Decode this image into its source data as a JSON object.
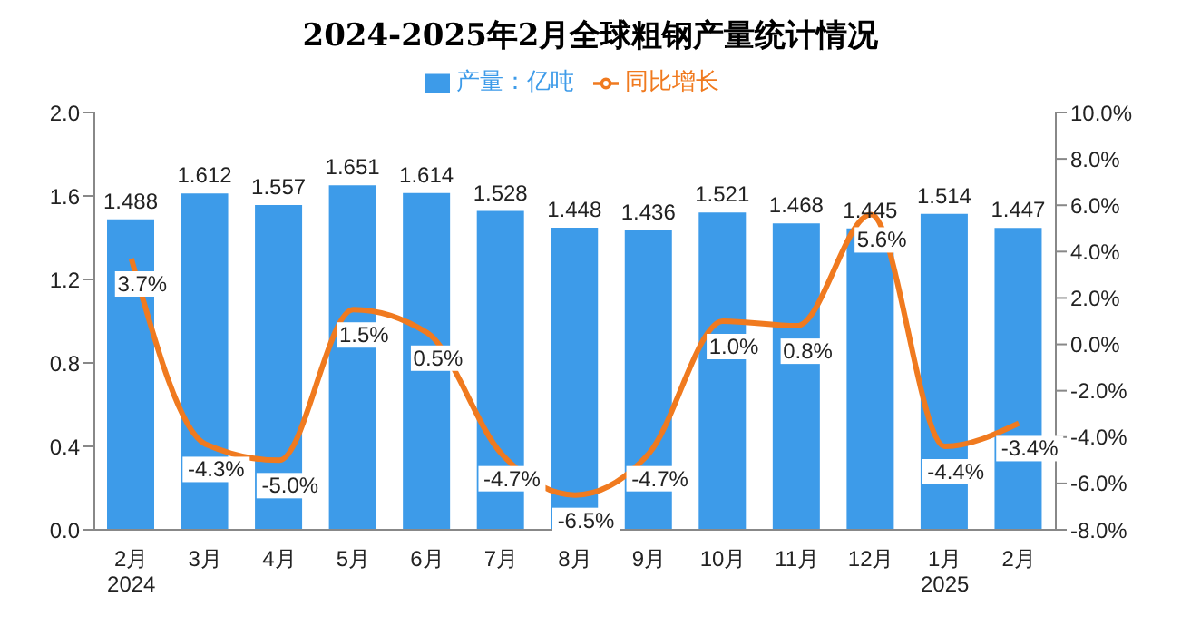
{
  "chart_data": {
    "type": "bar",
    "title": "2024-2025年2月全球粗钢产量统计情况",
    "categories": [
      "2月\n2024",
      "3月",
      "4月",
      "5月",
      "6月",
      "7月",
      "8月",
      "9月",
      "10月",
      "11月",
      "12月",
      "1月\n2025",
      "2月"
    ],
    "series": [
      {
        "name": "产量：亿吨",
        "color": "#3d9be9",
        "values": [
          1.488,
          1.612,
          1.557,
          1.651,
          1.614,
          1.528,
          1.448,
          1.436,
          1.521,
          1.468,
          1.445,
          1.514,
          1.447
        ],
        "value_labels": [
          "1.488",
          "1.612",
          "1.557",
          "1.651",
          "1.614",
          "1.528",
          "1.448",
          "1.436",
          "1.521",
          "1.468",
          "1.445",
          "1.514",
          "1.447"
        ]
      },
      {
        "name": "同比增长",
        "type": "line",
        "axis": "y2",
        "color": "#f07a1f",
        "values": [
          3.7,
          -4.3,
          -5.0,
          1.5,
          0.5,
          -4.7,
          -6.5,
          -4.7,
          1.0,
          0.8,
          5.6,
          -4.4,
          -3.4
        ],
        "value_labels": [
          "3.7%",
          "-4.3%",
          "-5.0%",
          "1.5%",
          "0.5%",
          "-4.7%",
          "-6.5%",
          "-4.7%",
          "1.0%",
          "0.8%",
          "5.6%",
          "-4.4%",
          "-3.4%"
        ]
      }
    ],
    "ylim": [
      0,
      2
    ],
    "yticks": [
      {
        "value": 0,
        "label": "0.0"
      },
      {
        "value": 0.4,
        "label": "0.4"
      },
      {
        "value": 0.8,
        "label": "0.8"
      },
      {
        "value": 1.2,
        "label": "1.2"
      },
      {
        "value": 1.6,
        "label": "1.6"
      },
      {
        "value": 2,
        "label": "2.0"
      }
    ],
    "y2lim": [
      -8,
      10
    ],
    "y2ticks": [
      {
        "value": -8,
        "label": "-8.0%"
      },
      {
        "value": -6,
        "label": "-6.0%"
      },
      {
        "value": -4,
        "label": "-4.0%"
      },
      {
        "value": -2,
        "label": "-2.0%"
      },
      {
        "value": 0,
        "label": "0.0%"
      },
      {
        "value": 2,
        "label": "2.0%"
      },
      {
        "value": 4,
        "label": "4.0%"
      },
      {
        "value": 6,
        "label": "6.0%"
      },
      {
        "value": 8,
        "label": "8.0%"
      },
      {
        "value": 10,
        "label": "10.0%"
      }
    ],
    "grid": false,
    "legend": "top",
    "marker": "none",
    "line_style": "solid"
  }
}
